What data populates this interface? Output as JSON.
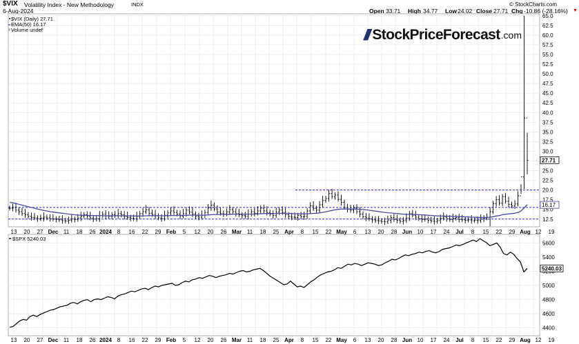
{
  "header": {
    "ticker": "$VIX",
    "name": "Volatility Index - New Methodology",
    "exchange": "INDX",
    "date": "6-Aug-2024",
    "copyright": "© StockCharts.com",
    "open_label": "Open",
    "open": "33.71",
    "high_label": "High",
    "high": "34.77",
    "low_label": "Low",
    "low": "24.02",
    "close_label": "Close",
    "close": "27.71",
    "chg_label": "Chg",
    "chg": "-10.86 (-28.16%)"
  },
  "logo": {
    "name": "StockPriceForecast",
    "domain": ".com"
  },
  "colors": {
    "ema": "#4a4aa0",
    "support": "#2a2acc",
    "price_bar": "#000000",
    "grid": "#e6e6e6"
  },
  "chart_data": [
    {
      "type": "ohlc",
      "legend": [
        "$VIX (Daily) 27.71",
        "EMA(50) 16.17",
        "Volume undef"
      ],
      "ylim": [
        10.5,
        65.5
      ],
      "y_ticks": [
        12.5,
        15.0,
        17.5,
        20.0,
        22.5,
        25.0,
        27.5,
        30.0,
        32.5,
        35.0,
        37.5,
        40.0,
        42.5,
        45.0,
        47.5,
        50.0,
        52.5,
        55.0,
        57.5,
        60.0,
        62.5,
        65.0
      ],
      "last_value_label": "27.71",
      "ema_last_label": "16.17",
      "horizontal_lines": [
        12.5,
        15.5,
        20.0
      ],
      "x_tick_labels": [
        "13",
        "20",
        "27",
        "Dec",
        "11",
        "18",
        "26",
        "2024",
        "8",
        "16",
        "22",
        "29",
        "Feb",
        "5",
        "12",
        "20",
        "26",
        "Mar",
        "11",
        "18",
        "25",
        "Apr",
        "8",
        "15",
        "22",
        "May",
        "6",
        "13",
        "20",
        "28",
        "Jun",
        "10",
        "17",
        "24",
        "Jul",
        "8",
        "15",
        "22",
        "29",
        "Aug",
        "12",
        "19"
      ],
      "bold_x_ticks": [
        "Dec",
        "2024",
        "Feb",
        "Mar",
        "Apr",
        "May",
        "Jun",
        "Jul",
        "Aug"
      ],
      "closes": [
        15.3,
        15.5,
        14.8,
        14.4,
        13.9,
        13.6,
        13.2,
        12.9,
        12.8,
        12.6,
        12.7,
        13.0,
        12.8,
        12.6,
        12.5,
        12.4,
        12.3,
        12.1,
        12.0,
        12.2,
        12.5,
        12.4,
        12.8,
        13.2,
        13.6,
        13.2,
        12.8,
        12.5,
        12.6,
        13.4,
        13.8,
        13.3,
        13.2,
        13.6,
        13.4,
        13.9,
        13.6,
        13.2,
        12.9,
        12.7,
        12.6,
        13.2,
        13.9,
        14.4,
        14.9,
        14.0,
        13.7,
        13.3,
        12.8,
        12.6,
        13.5,
        14.1,
        14.6,
        14.2,
        13.8,
        13.3,
        13.9,
        14.8,
        14.3,
        13.8,
        13.2,
        13.0,
        13.5,
        14.2,
        15.4,
        16.1,
        15.1,
        14.3,
        14.0,
        13.8,
        14.3,
        14.9,
        14.4,
        13.9,
        13.6,
        13.4,
        13.2,
        13.8,
        14.4,
        14.0,
        14.6,
        15.3,
        14.6,
        14.2,
        13.8,
        13.4,
        14.3,
        14.8,
        14.2,
        13.6,
        13.2,
        13.0,
        12.9,
        13.4,
        13.1,
        13.2,
        14.6,
        15.9,
        15.2,
        14.8,
        16.2,
        17.3,
        17.8,
        19.1,
        18.3,
        18.7,
        17.6,
        16.8,
        15.5,
        15.0,
        14.8,
        15.4,
        14.4,
        13.8,
        13.1,
        12.8,
        12.6,
        12.3,
        12.1,
        12.0,
        11.9,
        11.8,
        12.2,
        12.9,
        12.4,
        12.2,
        11.9,
        12.1,
        12.8,
        13.9,
        13.5,
        13.0,
        12.6,
        12.4,
        12.5,
        12.2,
        12.0,
        11.9,
        12.1,
        12.7,
        13.0,
        12.6,
        12.4,
        12.7,
        12.9,
        12.4,
        12.3,
        12.2,
        12.3,
        12.1,
        12.2,
        12.1,
        12.5,
        12.8,
        13.0,
        14.4,
        16.5,
        17.5,
        16.6,
        18.3,
        17.1,
        16.3,
        15.9,
        16.4,
        18.5,
        23.4,
        38.6,
        27.71
      ],
      "ema50": [
        16.8,
        16.7,
        16.5,
        16.3,
        16.1,
        15.9,
        15.7,
        15.5,
        15.3,
        15.1,
        14.9,
        14.7,
        14.6,
        14.4,
        14.3,
        14.2,
        14.1,
        14.0,
        13.9,
        13.8,
        13.7,
        13.6,
        13.55,
        13.5,
        13.48,
        13.45,
        13.42,
        13.4,
        13.38,
        13.37,
        13.36,
        13.35,
        13.34,
        13.34,
        13.34,
        13.35,
        13.35,
        13.34,
        13.33,
        13.31,
        13.29,
        13.29,
        13.3,
        13.32,
        13.35,
        13.37,
        13.38,
        13.38,
        13.37,
        13.35,
        13.35,
        13.37,
        13.4,
        13.42,
        13.43,
        13.43,
        13.45,
        13.48,
        13.5,
        13.51,
        13.5,
        13.49,
        13.49,
        13.51,
        13.56,
        13.62,
        13.66,
        13.68,
        13.69,
        13.7,
        13.71,
        13.74,
        13.76,
        13.77,
        13.77,
        13.77,
        13.76,
        13.77,
        13.79,
        13.8,
        13.83,
        13.88,
        13.91,
        13.93,
        13.93,
        13.92,
        13.94,
        13.97,
        13.98,
        13.97,
        13.95,
        13.92,
        13.88,
        13.86,
        13.83,
        13.81,
        13.84,
        13.92,
        13.97,
        14.01,
        14.1,
        14.23,
        14.37,
        14.57,
        14.72,
        14.88,
        15.0,
        15.08,
        15.1,
        15.1,
        15.1,
        15.11,
        15.08,
        15.03,
        14.96,
        14.87,
        14.78,
        14.67,
        14.56,
        14.45,
        14.33,
        14.22,
        14.13,
        14.07,
        13.99,
        13.91,
        13.82,
        13.75,
        13.71,
        13.72,
        13.71,
        13.68,
        13.64,
        13.59,
        13.54,
        13.49,
        13.43,
        13.37,
        13.31,
        13.28,
        13.27,
        13.24,
        13.2,
        13.18,
        13.17,
        13.14,
        13.11,
        13.08,
        13.04,
        13.0,
        12.97,
        12.94,
        12.92,
        12.92,
        12.92,
        12.98,
        13.12,
        13.29,
        13.41,
        13.61,
        13.74,
        13.84,
        13.92,
        14.02,
        14.2,
        14.57,
        15.4,
        16.17
      ]
    },
    {
      "type": "line",
      "legend": [
        "$SPX 5240.03"
      ],
      "ylim": [
        4290,
        5720
      ],
      "y_ticks": [
        4400,
        4600,
        4800,
        5000,
        5200,
        5400,
        5600
      ],
      "last_value_label": "5240.03",
      "x_tick_labels": [
        "13",
        "20",
        "27",
        "Dec",
        "11",
        "18",
        "26",
        "2024",
        "8",
        "16",
        "22",
        "29",
        "Feb",
        "5",
        "12",
        "20",
        "26",
        "Mar",
        "11",
        "18",
        "25",
        "Apr",
        "8",
        "15",
        "22",
        "May",
        "6",
        "13",
        "20",
        "28",
        "Jun",
        "10",
        "17",
        "24",
        "Jul",
        "8",
        "15",
        "22",
        "29",
        "Aug",
        "12",
        "19"
      ],
      "values": [
        4410,
        4420,
        4460,
        4500,
        4520,
        4510,
        4560,
        4580,
        4560,
        4590,
        4610,
        4630,
        4650,
        4660,
        4680,
        4700,
        4710,
        4720,
        4750,
        4760,
        4740,
        4770,
        4790,
        4800,
        4770,
        4800,
        4810,
        4800,
        4820,
        4840,
        4830,
        4810,
        4850,
        4870,
        4880,
        4900,
        4920,
        4910,
        4930,
        4950,
        4960,
        4940,
        4970,
        4990,
        4980,
        5000,
        5010,
        5020,
        5030,
        5000,
        5010,
        5040,
        5060,
        5050,
        5080,
        5090,
        5110,
        5100,
        5120,
        5140,
        5130,
        5110,
        5130,
        5140,
        5150,
        5170,
        5160,
        5180,
        5200,
        5210,
        5190,
        5200,
        5220,
        5230,
        5240,
        5210,
        5170,
        5130,
        5100,
        5070,
        5040,
        5010,
        5020,
        5060,
        5020,
        4980,
        4990,
        4970,
        5010,
        5050,
        5080,
        5120,
        5150,
        5170,
        5190,
        5200,
        5220,
        5250,
        5240,
        5270,
        5300,
        5290,
        5310,
        5300,
        5280,
        5300,
        5320,
        5310,
        5300,
        5280,
        5290,
        5320,
        5340,
        5370,
        5360,
        5380,
        5410,
        5430,
        5420,
        5440,
        5450,
        5470,
        5460,
        5480,
        5490,
        5470,
        5460,
        5480,
        5510,
        5520,
        5530,
        5550,
        5570,
        5560,
        5580,
        5600,
        5620,
        5640,
        5620,
        5660,
        5630,
        5600,
        5560,
        5580,
        5600,
        5540,
        5450,
        5430,
        5470,
        5440,
        5380,
        5330,
        5190,
        5240.03
      ]
    }
  ]
}
